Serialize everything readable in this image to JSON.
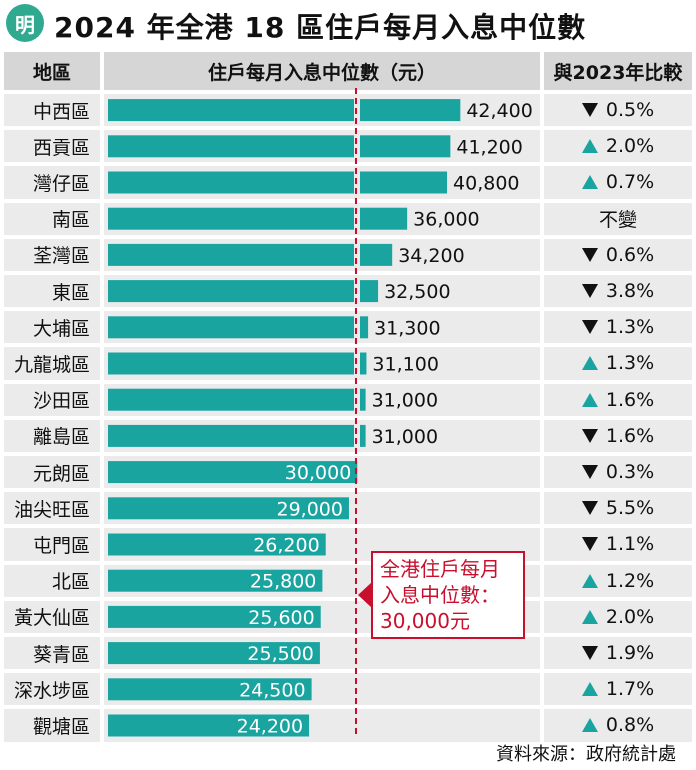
{
  "header": {
    "logo_char": "明",
    "title": "2024 年全港 18 區住戶每月入息中位數"
  },
  "table": {
    "col_district": "地區",
    "col_income": "住戶每月入息中位數（元）",
    "col_change": "與2023年比較"
  },
  "annotation": {
    "line1": "全港住戶每月",
    "line2": "入息中位數：",
    "line3": "30,000元"
  },
  "source": "資料來源：政府統計處",
  "colors": {
    "bar": "#19a4a0",
    "up": "#19a4a0",
    "down": "#111111",
    "median_line": "#c8102e",
    "annotation": "#c8102e"
  },
  "chart_data": {
    "type": "bar",
    "orientation": "horizontal",
    "title": "2024 年全港 18 區住戶每月入息中位數",
    "xlabel": "住戶每月入息中位數（元）",
    "reference_line": {
      "value": 30000,
      "label": "全港住戶每月入息中位數：30,000元"
    },
    "categories": [
      "中西區",
      "西貢區",
      "灣仔區",
      "南區",
      "荃灣區",
      "東區",
      "大埔區",
      "九龍城區",
      "沙田區",
      "離島區",
      "元朗區",
      "油尖旺區",
      "屯門區",
      "北區",
      "黃大仙區",
      "葵青區",
      "深水埗區",
      "觀塘區"
    ],
    "values": [
      42400,
      41200,
      40800,
      36000,
      34200,
      32500,
      31300,
      31100,
      31000,
      31000,
      30000,
      29000,
      26200,
      25800,
      25600,
      25500,
      24500,
      24200
    ],
    "value_labels": [
      "42,400",
      "41,200",
      "40,800",
      "36,000",
      "34,200",
      "32,500",
      "31,300",
      "31,100",
      "31,000",
      "31,000",
      "30,000",
      "29,000",
      "26,200",
      "25,800",
      "25,600",
      "25,500",
      "24,500",
      "24,200"
    ],
    "changes": [
      {
        "dir": "down",
        "text": "0.5%"
      },
      {
        "dir": "up",
        "text": "2.0%"
      },
      {
        "dir": "up",
        "text": "0.7%"
      },
      {
        "dir": "none",
        "text": "不變"
      },
      {
        "dir": "down",
        "text": "0.6%"
      },
      {
        "dir": "down",
        "text": "3.8%"
      },
      {
        "dir": "down",
        "text": "1.3%"
      },
      {
        "dir": "up",
        "text": "1.3%"
      },
      {
        "dir": "up",
        "text": "1.6%"
      },
      {
        "dir": "down",
        "text": "1.6%"
      },
      {
        "dir": "down",
        "text": "0.3%"
      },
      {
        "dir": "down",
        "text": "5.5%"
      },
      {
        "dir": "down",
        "text": "1.1%"
      },
      {
        "dir": "up",
        "text": "1.2%"
      },
      {
        "dir": "up",
        "text": "2.0%"
      },
      {
        "dir": "down",
        "text": "1.9%"
      },
      {
        "dir": "up",
        "text": "1.7%"
      },
      {
        "dir": "up",
        "text": "0.8%"
      }
    ]
  }
}
